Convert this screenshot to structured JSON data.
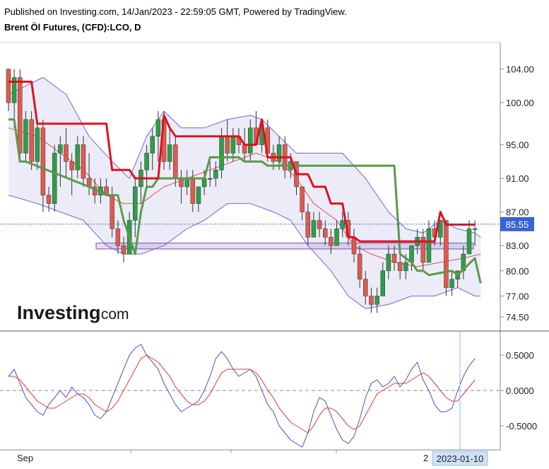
{
  "header": {
    "published": "Published on Investing.com, 14/Jan/2023 - 22:59:05 GMT, Powered by TradingView.",
    "instrument": "Brent Öl Futures, (CFD):LCO, D"
  },
  "logo": {
    "brand": "Investing",
    "suffix": ".com"
  },
  "chart_data": [
    {
      "type": "candlestick",
      "title": "Brent Öl Futures, (CFD):LCO, D",
      "ylim": [
        73,
        107
      ],
      "y_ticks": [
        "104.00",
        "100.00",
        "95.00",
        "91.00",
        "87.00",
        "83.00",
        "80.00",
        "77.00",
        "74.50"
      ],
      "current_price": "85.55",
      "colors": {
        "up": "#2e9e48",
        "down": "#e05a4e",
        "supertrend": "#e0101e",
        "stop_line": "#5a9a4a",
        "band": "#6a6ad8",
        "basis": "#e05050",
        "support_zone": "#7a4fa8"
      },
      "support_zone": [
        82.6,
        83.3
      ],
      "candles": [
        [
          104,
          104,
          99,
          100
        ],
        [
          100,
          104,
          97,
          103
        ],
        [
          103,
          104,
          93,
          94
        ],
        [
          94,
          99,
          93,
          98
        ],
        [
          98,
          99,
          92,
          93
        ],
        [
          93,
          98,
          92,
          97
        ],
        [
          97,
          98,
          87,
          89
        ],
        [
          89,
          90,
          87,
          88
        ],
        [
          88,
          95,
          87,
          94
        ],
        [
          94,
          96,
          90,
          95
        ],
        [
          95,
          97,
          91,
          93
        ],
        [
          93,
          94,
          89,
          92
        ],
        [
          92,
          96,
          91,
          95
        ],
        [
          95,
          96,
          90,
          91
        ],
        [
          91,
          94,
          89,
          90
        ],
        [
          90,
          91,
          88,
          89
        ],
        [
          89,
          91,
          88,
          90
        ],
        [
          90,
          91,
          89,
          89
        ],
        [
          89,
          90,
          84,
          85
        ],
        [
          85,
          86,
          82,
          83
        ],
        [
          83,
          84,
          81,
          82
        ],
        [
          82,
          87,
          82,
          86
        ],
        [
          86,
          91,
          84,
          90
        ],
        [
          90,
          93,
          88,
          92
        ],
        [
          92,
          95,
          90,
          94
        ],
        [
          94,
          97,
          92,
          96
        ],
        [
          96,
          99,
          93,
          98
        ],
        [
          98,
          99,
          92,
          93
        ],
        [
          93,
          97,
          92,
          95
        ],
        [
          95,
          96,
          90,
          91
        ],
        [
          91,
          92,
          88,
          90
        ],
        [
          90,
          92,
          89,
          91
        ],
        [
          91,
          92,
          87,
          88
        ],
        [
          88,
          90,
          87,
          90
        ],
        [
          90,
          92,
          89,
          91
        ],
        [
          91,
          93,
          90,
          91
        ],
        [
          91,
          93,
          90,
          92
        ],
        [
          92,
          97,
          91,
          96
        ],
        [
          96,
          98,
          93,
          94
        ],
        [
          94,
          97,
          93,
          96
        ],
        [
          96,
          97,
          94,
          95
        ],
        [
          95,
          97,
          93,
          94
        ],
        [
          94,
          98,
          93,
          97
        ],
        [
          97,
          99,
          95,
          95
        ],
        [
          95,
          98,
          94,
          97
        ],
        [
          97,
          98,
          93,
          94
        ],
        [
          94,
          95,
          92,
          93
        ],
        [
          93,
          96,
          92,
          95
        ],
        [
          95,
          96,
          91,
          92
        ],
        [
          92,
          94,
          91,
          93
        ],
        [
          93,
          93,
          89,
          90
        ],
        [
          90,
          90,
          86,
          87
        ],
        [
          87,
          88,
          83,
          84
        ],
        [
          84,
          87,
          84,
          86
        ],
        [
          86,
          87,
          84,
          85
        ],
        [
          85,
          86,
          83,
          84
        ],
        [
          84,
          85,
          82,
          83
        ],
        [
          83,
          86,
          83,
          85
        ],
        [
          85,
          87,
          84,
          86
        ],
        [
          86,
          87,
          83,
          84
        ],
        [
          84,
          85,
          81,
          82
        ],
        [
          82,
          83,
          78,
          79
        ],
        [
          79,
          80,
          76,
          77
        ],
        [
          77,
          78,
          75,
          76
        ],
        [
          76,
          78,
          75,
          77
        ],
        [
          77,
          81,
          77,
          80
        ],
        [
          80,
          83,
          79,
          82
        ],
        [
          82,
          83,
          80,
          81
        ],
        [
          81,
          82,
          79,
          80
        ],
        [
          80,
          82,
          79,
          81
        ],
        [
          81,
          83,
          80,
          83
        ],
        [
          83,
          85,
          82,
          84
        ],
        [
          84,
          85,
          80,
          81
        ],
        [
          81,
          86,
          81,
          85
        ],
        [
          85,
          86,
          83,
          84
        ],
        [
          84,
          86,
          83,
          86
        ],
        [
          86,
          86,
          77,
          78
        ],
        [
          78,
          80,
          77,
          79
        ],
        [
          79,
          80,
          78,
          80
        ],
        [
          80,
          83,
          79,
          82
        ],
        [
          82,
          86,
          82,
          85
        ],
        [
          85,
          86,
          83,
          85
        ]
      ],
      "supertrend": [
        [
          0,
          102.5
        ],
        [
          1,
          102.5
        ],
        [
          2,
          102.5
        ],
        [
          3,
          102.5
        ],
        [
          4,
          102.5
        ],
        [
          5,
          97.5
        ],
        [
          11,
          97.5
        ],
        [
          12,
          97.5
        ],
        [
          17,
          97.5
        ],
        [
          18,
          92
        ],
        [
          21,
          92
        ],
        [
          22,
          91
        ],
        [
          26,
          91
        ],
        [
          27,
          98.5
        ],
        [
          28,
          97
        ],
        [
          29,
          96
        ],
        [
          34,
          96
        ],
        [
          35,
          96
        ],
        [
          40,
          96
        ],
        [
          41,
          95
        ],
        [
          43,
          95
        ],
        [
          44,
          98
        ],
        [
          45,
          93.5
        ],
        [
          49,
          93.5
        ],
        [
          50,
          91.5
        ],
        [
          52,
          91.5
        ],
        [
          53,
          90
        ],
        [
          55,
          90
        ],
        [
          56,
          88
        ],
        [
          58,
          88
        ],
        [
          59,
          84
        ],
        [
          60,
          84
        ],
        [
          61,
          83.5
        ],
        [
          73,
          83.5
        ],
        [
          74,
          83.5
        ],
        [
          75,
          87
        ],
        [
          76,
          85.5
        ],
        [
          81,
          85.5
        ]
      ],
      "stop_line": [
        [
          0,
          98
        ],
        [
          1,
          98
        ],
        [
          2,
          93
        ],
        [
          3,
          93
        ],
        [
          14,
          90
        ],
        [
          17,
          89
        ],
        [
          19,
          89
        ],
        [
          20,
          86
        ],
        [
          21,
          84
        ],
        [
          22,
          82
        ],
        [
          23,
          87
        ],
        [
          24,
          90
        ],
        [
          25,
          90
        ],
        [
          26,
          91
        ],
        [
          34,
          91
        ],
        [
          35,
          93.5
        ],
        [
          40,
          93.5
        ],
        [
          41,
          93
        ],
        [
          43,
          93
        ],
        [
          44,
          93
        ],
        [
          45,
          92.5
        ],
        [
          67,
          92.5
        ],
        [
          68,
          82
        ],
        [
          70,
          81
        ],
        [
          71,
          80
        ],
        [
          72,
          80
        ],
        [
          73,
          79.5
        ],
        [
          77,
          80
        ],
        [
          78,
          79.5
        ],
        [
          81,
          81.5
        ],
        [
          82,
          78.5
        ]
      ],
      "bb_upper": [
        [
          0,
          101
        ],
        [
          6,
          103
        ],
        [
          10,
          101
        ],
        [
          14,
          96
        ],
        [
          18,
          93
        ],
        [
          21,
          91
        ],
        [
          24,
          96
        ],
        [
          27,
          99
        ],
        [
          30,
          97
        ],
        [
          34,
          97
        ],
        [
          38,
          98
        ],
        [
          42,
          98.5
        ],
        [
          44,
          98
        ],
        [
          47,
          96
        ],
        [
          50,
          94
        ],
        [
          54,
          94
        ],
        [
          58,
          94
        ],
        [
          62,
          91
        ],
        [
          66,
          87
        ],
        [
          69,
          85
        ],
        [
          72,
          84.5
        ],
        [
          75,
          86
        ],
        [
          78,
          85
        ],
        [
          81,
          84.5
        ],
        [
          82,
          84
        ]
      ],
      "bb_lower": [
        [
          0,
          89
        ],
        [
          5,
          88
        ],
        [
          9,
          87
        ],
        [
          13,
          86
        ],
        [
          17,
          83
        ],
        [
          20,
          82
        ],
        [
          23,
          82
        ],
        [
          27,
          83
        ],
        [
          31,
          85
        ],
        [
          34,
          86
        ],
        [
          38,
          88
        ],
        [
          42,
          88
        ],
        [
          46,
          87
        ],
        [
          49,
          86
        ],
        [
          52,
          83
        ],
        [
          56,
          80
        ],
        [
          59,
          77
        ],
        [
          62,
          75.5
        ],
        [
          66,
          76
        ],
        [
          70,
          77
        ],
        [
          74,
          77
        ],
        [
          78,
          78
        ],
        [
          81,
          77
        ],
        [
          82,
          77
        ]
      ],
      "bb_basis": [
        [
          0,
          97
        ],
        [
          5,
          96
        ],
        [
          9,
          94
        ],
        [
          13,
          92
        ],
        [
          17,
          89
        ],
        [
          20,
          88
        ],
        [
          23,
          88
        ],
        [
          27,
          90
        ],
        [
          31,
          91
        ],
        [
          35,
          92
        ],
        [
          39,
          93
        ],
        [
          43,
          94
        ],
        [
          47,
          93
        ],
        [
          50,
          91
        ],
        [
          53,
          88
        ],
        [
          57,
          86
        ],
        [
          60,
          83
        ],
        [
          63,
          82
        ],
        [
          67,
          81
        ],
        [
          71,
          80.5
        ],
        [
          75,
          81
        ],
        [
          79,
          81.5
        ],
        [
          82,
          82
        ]
      ]
    },
    {
      "type": "line",
      "ylim": [
        -0.8,
        0.8
      ],
      "y_ticks": [
        "0.5000",
        "0.0000",
        "-0.5000"
      ],
      "x_ticks": [
        "Sep",
        "2",
        "2023-01-10"
      ],
      "series": [
        {
          "color": "#5050c8",
          "values": [
            0.2,
            0.3,
            0.1,
            -0.1,
            -0.2,
            -0.3,
            -0.35,
            -0.2,
            -0.1,
            0.0,
            -0.1,
            0.05,
            -0.05,
            -0.1,
            -0.2,
            -0.35,
            -0.4,
            -0.3,
            -0.1,
            0.1,
            0.3,
            0.5,
            0.6,
            0.65,
            0.5,
            0.4,
            0.3,
            0.1,
            -0.05,
            -0.2,
            -0.3,
            -0.25,
            -0.2,
            -0.15,
            0.0,
            0.2,
            0.45,
            0.55,
            0.45,
            0.3,
            0.2,
            0.25,
            0.3,
            0.2,
            0.0,
            -0.2,
            -0.3,
            -0.5,
            -0.6,
            -0.7,
            -0.75,
            -0.8,
            -0.6,
            -0.3,
            -0.1,
            -0.15,
            -0.35,
            -0.55,
            -0.7,
            -0.75,
            -0.65,
            -0.4,
            -0.1,
            0.1,
            0.15,
            0.05,
            0.1,
            0.2,
            0.05,
            0.15,
            0.3,
            0.4,
            0.15,
            0.0,
            -0.2,
            -0.3,
            -0.3,
            -0.25,
            0.0,
            0.2,
            0.35,
            0.45
          ]
        },
        {
          "color": "#e03a3a",
          "values": [
            0.2,
            0.2,
            0.15,
            0.05,
            -0.05,
            -0.15,
            -0.2,
            -0.25,
            -0.25,
            -0.2,
            -0.15,
            -0.1,
            -0.05,
            -0.05,
            -0.1,
            -0.2,
            -0.25,
            -0.3,
            -0.25,
            -0.15,
            0.0,
            0.15,
            0.3,
            0.45,
            0.5,
            0.45,
            0.4,
            0.3,
            0.2,
            0.05,
            -0.05,
            -0.15,
            -0.2,
            -0.2,
            -0.15,
            -0.05,
            0.1,
            0.25,
            0.3,
            0.3,
            0.3,
            0.3,
            0.3,
            0.25,
            0.15,
            0.0,
            -0.1,
            -0.25,
            -0.35,
            -0.45,
            -0.5,
            -0.55,
            -0.6,
            -0.5,
            -0.35,
            -0.25,
            -0.25,
            -0.3,
            -0.4,
            -0.5,
            -0.55,
            -0.5,
            -0.35,
            -0.2,
            -0.05,
            0.0,
            0.05,
            0.1,
            0.1,
            0.1,
            0.15,
            0.2,
            0.25,
            0.2,
            0.1,
            0.0,
            -0.1,
            -0.15,
            -0.15,
            -0.05,
            0.05,
            0.15
          ]
        }
      ]
    }
  ]
}
